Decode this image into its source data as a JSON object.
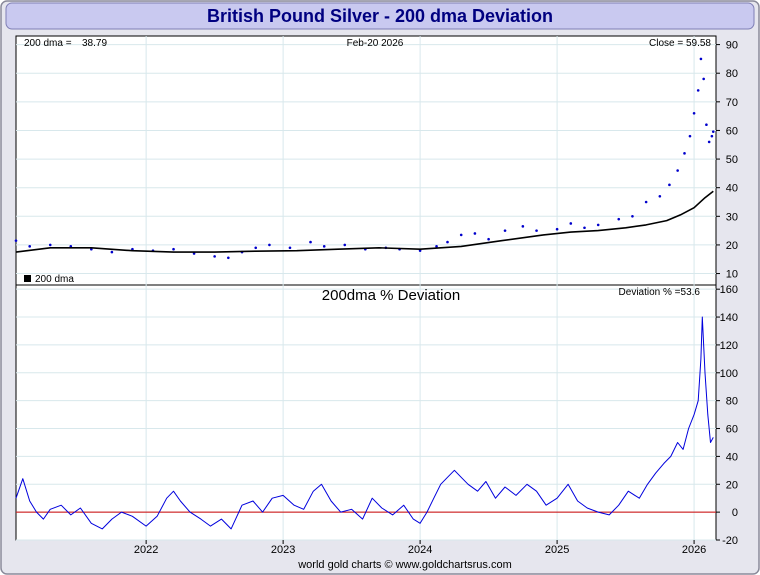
{
  "header": {
    "title": "British Pound Silver - 200 dma Deviation"
  },
  "footer": {
    "credit": "world gold charts © www.goldchartsrus.com"
  },
  "colors": {
    "title_bar": "#c9c9f0",
    "title_text": "#000080",
    "price_series": "#0000cc",
    "dma_series": "#000000",
    "deviation_series": "#0000dd",
    "zero_line": "#cc0000",
    "grid": "#d8e8ec"
  },
  "chart_data": [
    {
      "type": "line",
      "info_left_label": "200 dma =",
      "info_left_value": "38.79",
      "info_date": "Feb-20  2026",
      "info_right": "Close = 59.58",
      "legend": [
        {
          "marker": "square",
          "label": "200 dma"
        }
      ],
      "grid": true,
      "x_ticks": [
        "2022",
        "2023",
        "2024",
        "2025",
        "2026"
      ],
      "x_tick_values": [
        2022.0,
        2023.0,
        2024.0,
        2025.0,
        2026.0
      ],
      "xlim": [
        2021.05,
        2026.16
      ],
      "y_ticks": [
        10,
        20,
        30,
        40,
        50,
        60,
        70,
        80,
        90
      ],
      "ylim": [
        6,
        93
      ],
      "series": [
        {
          "name": "Close",
          "style": "dots",
          "x": [
            2021.05,
            2021.15,
            2021.3,
            2021.45,
            2021.6,
            2021.75,
            2021.9,
            2022.05,
            2022.2,
            2022.35,
            2022.5,
            2022.6,
            2022.7,
            2022.8,
            2022.9,
            2023.05,
            2023.2,
            2023.3,
            2023.45,
            2023.6,
            2023.75,
            2023.85,
            2024.0,
            2024.12,
            2024.2,
            2024.3,
            2024.4,
            2024.5,
            2024.62,
            2024.75,
            2024.85,
            2025.0,
            2025.1,
            2025.2,
            2025.3,
            2025.45,
            2025.55,
            2025.65,
            2025.75,
            2025.82,
            2025.88,
            2025.93,
            2025.97,
            2026.0,
            2026.03,
            2026.05,
            2026.07,
            2026.09,
            2026.11,
            2026.13,
            2026.14
          ],
          "y": [
            21.5,
            19.5,
            20.0,
            19.5,
            18.5,
            17.5,
            18.5,
            18.0,
            18.5,
            17.0,
            16.0,
            15.5,
            17.5,
            19.0,
            20.0,
            19.0,
            21.0,
            19.5,
            20.0,
            18.5,
            19.0,
            18.5,
            18.0,
            19.5,
            21.0,
            23.5,
            24.0,
            22.0,
            25.0,
            26.5,
            25.0,
            25.5,
            27.5,
            26.0,
            27.0,
            29.0,
            30.0,
            35.0,
            37.0,
            41.0,
            46.0,
            52.0,
            58.0,
            66.0,
            74.0,
            85.0,
            78.0,
            62.0,
            56.0,
            58.0,
            59.58
          ]
        },
        {
          "name": "200 dma",
          "style": "line",
          "x": [
            2021.05,
            2021.3,
            2021.6,
            2021.9,
            2022.2,
            2022.5,
            2022.8,
            2023.1,
            2023.4,
            2023.7,
            2024.0,
            2024.3,
            2024.6,
            2024.9,
            2025.1,
            2025.3,
            2025.5,
            2025.65,
            2025.8,
            2025.9,
            2026.0,
            2026.08,
            2026.14
          ],
          "y": [
            17.5,
            19.0,
            19.0,
            18.0,
            17.5,
            17.5,
            17.8,
            18.0,
            18.5,
            19.0,
            18.5,
            19.5,
            21.5,
            23.5,
            24.5,
            25.0,
            26.0,
            27.0,
            28.5,
            30.5,
            33.0,
            36.5,
            38.79
          ]
        }
      ]
    },
    {
      "type": "line",
      "title": "200dma  %  Deviation",
      "info_right": "Deviation % =53.6",
      "grid": true,
      "x_ticks": [
        "2022",
        "2023",
        "2024",
        "2025",
        "2026"
      ],
      "x_tick_values": [
        2022.0,
        2023.0,
        2024.0,
        2025.0,
        2026.0
      ],
      "xlim": [
        2021.05,
        2026.16
      ],
      "y_ticks": [
        -20,
        0,
        20,
        40,
        60,
        80,
        100,
        120,
        140,
        160
      ],
      "ylim": [
        -20,
        163
      ],
      "reference_line": 0,
      "series": [
        {
          "name": "Deviation",
          "x": [
            2021.05,
            2021.1,
            2021.15,
            2021.2,
            2021.25,
            2021.3,
            2021.38,
            2021.45,
            2021.52,
            2021.6,
            2021.68,
            2021.75,
            2021.82,
            2021.9,
            2022.0,
            2022.08,
            2022.15,
            2022.2,
            2022.25,
            2022.32,
            2022.4,
            2022.47,
            2022.55,
            2022.62,
            2022.7,
            2022.78,
            2022.85,
            2022.92,
            2023.0,
            2023.08,
            2023.15,
            2023.22,
            2023.28,
            2023.35,
            2023.42,
            2023.5,
            2023.58,
            2023.65,
            2023.72,
            2023.8,
            2023.88,
            2023.95,
            2024.0,
            2024.05,
            2024.1,
            2024.15,
            2024.2,
            2024.25,
            2024.3,
            2024.35,
            2024.42,
            2024.48,
            2024.55,
            2024.62,
            2024.7,
            2024.78,
            2024.85,
            2024.92,
            2025.0,
            2025.08,
            2025.15,
            2025.22,
            2025.3,
            2025.38,
            2025.45,
            2025.52,
            2025.6,
            2025.66,
            2025.72,
            2025.78,
            2025.83,
            2025.88,
            2025.92,
            2025.96,
            2026.0,
            2026.03,
            2026.05,
            2026.06,
            2026.08,
            2026.1,
            2026.12,
            2026.14
          ],
          "y": [
            10,
            24,
            8,
            0,
            -5,
            2,
            5,
            -2,
            3,
            -8,
            -12,
            -5,
            0,
            -3,
            -10,
            -3,
            10,
            15,
            8,
            0,
            -5,
            -10,
            -5,
            -12,
            5,
            8,
            0,
            10,
            12,
            5,
            2,
            15,
            20,
            8,
            0,
            2,
            -5,
            10,
            3,
            -2,
            5,
            -5,
            -8,
            0,
            10,
            20,
            25,
            30,
            25,
            20,
            15,
            22,
            10,
            18,
            12,
            20,
            15,
            5,
            10,
            20,
            8,
            3,
            0,
            -2,
            5,
            15,
            10,
            20,
            28,
            35,
            40,
            50,
            45,
            60,
            70,
            80,
            110,
            140,
            100,
            70,
            50,
            53.6
          ]
        }
      ]
    }
  ]
}
